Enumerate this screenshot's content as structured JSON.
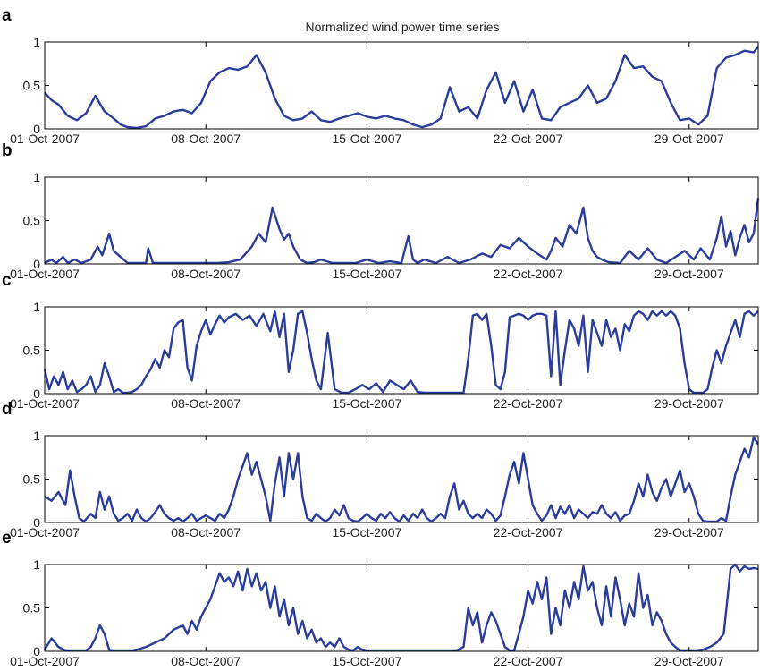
{
  "colors": {
    "series": "#2b3d9b",
    "axis": "#000000"
  },
  "chart_data": {
    "type": "line",
    "title": "Normalized wind power time series",
    "x_start": "01-Oct-2007",
    "x_end": "01-Nov-2007",
    "xticks": [
      "01-Oct-2007",
      "08-Oct-2007",
      "15-Oct-2007",
      "22-Oct-2007",
      "29-Oct-2007"
    ],
    "yticks": [
      "0",
      "0.5",
      "1"
    ],
    "ylim": [
      0,
      1
    ],
    "grid": false,
    "panels": [
      {
        "letter": "a",
        "t": [
          0,
          0.3,
          0.6,
          1,
          1.4,
          1.8,
          2.2,
          2.6,
          3,
          3.3,
          3.6,
          4,
          4.4,
          4.8,
          5.2,
          5.6,
          6,
          6.4,
          6.8,
          7.2,
          7.6,
          8,
          8.4,
          8.8,
          9.2,
          9.6,
          10,
          10.4,
          10.8,
          11.2,
          11.6,
          12,
          12.4,
          12.8,
          13.2,
          13.6,
          14,
          14.4,
          14.8,
          15.2,
          15.6,
          16,
          16.4,
          16.8,
          17.2,
          17.6,
          18,
          18.4,
          18.8,
          19.2,
          19.6,
          20,
          20.4,
          20.8,
          21.2,
          21.6,
          22,
          22.4,
          22.8,
          23.2,
          23.6,
          24,
          24.4,
          24.8,
          25.2,
          25.6,
          26,
          26.4,
          26.8,
          27.2,
          27.6,
          28,
          28.4,
          28.8,
          29.2,
          29.6,
          30,
          30.4,
          30.8,
          31
        ],
        "v": [
          0.42,
          0.33,
          0.28,
          0.15,
          0.1,
          0.18,
          0.38,
          0.2,
          0.12,
          0.05,
          0.02,
          0.01,
          0.03,
          0.12,
          0.15,
          0.2,
          0.22,
          0.18,
          0.3,
          0.55,
          0.65,
          0.7,
          0.68,
          0.72,
          0.85,
          0.65,
          0.35,
          0.15,
          0.1,
          0.12,
          0.2,
          0.1,
          0.08,
          0.12,
          0.15,
          0.18,
          0.14,
          0.12,
          0.15,
          0.12,
          0.1,
          0.05,
          0.02,
          0.05,
          0.12,
          0.48,
          0.2,
          0.25,
          0.12,
          0.45,
          0.65,
          0.3,
          0.55,
          0.2,
          0.45,
          0.12,
          0.1,
          0.25,
          0.3,
          0.35,
          0.5,
          0.3,
          0.35,
          0.55,
          0.85,
          0.7,
          0.72,
          0.6,
          0.55,
          0.3,
          0.1,
          0.12,
          0.05,
          0.15,
          0.7,
          0.82,
          0.85,
          0.9,
          0.88,
          0.95
        ]
      },
      {
        "letter": "b",
        "t": [
          0,
          0.3,
          0.5,
          0.8,
          1,
          1.3,
          1.6,
          2,
          2.3,
          2.5,
          2.8,
          3,
          3.3,
          3.6,
          4,
          4.4,
          4.5,
          4.7,
          5,
          5.5,
          6,
          6.5,
          7,
          7.5,
          8,
          8.5,
          9,
          9.3,
          9.6,
          9.9,
          10.2,
          10.4,
          10.6,
          10.8,
          11.1,
          11.4,
          11.7,
          12,
          12.5,
          13,
          13.5,
          14,
          14.5,
          15,
          15.5,
          15.8,
          16,
          16.2,
          16.5,
          17,
          17.5,
          18,
          18.5,
          19,
          19.4,
          19.8,
          20.2,
          20.6,
          21,
          21.4,
          21.8,
          22,
          22.2,
          22.5,
          22.8,
          23.1,
          23.4,
          23.6,
          23.8,
          24,
          24.2,
          24.5,
          25,
          25.4,
          25.8,
          26.2,
          26.6,
          27,
          27.4,
          27.8,
          28.2,
          28.5,
          28.9,
          29.2,
          29.4,
          29.6,
          29.8,
          30,
          30.2,
          30.4,
          30.6,
          30.8,
          31
        ],
        "v": [
          0.01,
          0.05,
          0.01,
          0.08,
          0.01,
          0.05,
          0.01,
          0.05,
          0.2,
          0.1,
          0.35,
          0.15,
          0.08,
          0.01,
          0.01,
          0.01,
          0.18,
          0.01,
          0.01,
          0.01,
          0.01,
          0.01,
          0.01,
          0.01,
          0.02,
          0.05,
          0.2,
          0.35,
          0.25,
          0.65,
          0.4,
          0.28,
          0.35,
          0.2,
          0.05,
          0.01,
          0.02,
          0.05,
          0.01,
          0.01,
          0.01,
          0.05,
          0.01,
          0.03,
          0.01,
          0.32,
          0.05,
          0.01,
          0.05,
          0.01,
          0.08,
          0.01,
          0.05,
          0.12,
          0.08,
          0.22,
          0.18,
          0.3,
          0.2,
          0.12,
          0.05,
          0.15,
          0.3,
          0.2,
          0.45,
          0.35,
          0.65,
          0.3,
          0.15,
          0.08,
          0.05,
          0.02,
          0.01,
          0.15,
          0.05,
          0.18,
          0.05,
          0.01,
          0.08,
          0.15,
          0.05,
          0.18,
          0.05,
          0.3,
          0.55,
          0.2,
          0.38,
          0.1,
          0.3,
          0.45,
          0.25,
          0.35,
          0.76
        ]
      },
      {
        "letter": "c",
        "t": [
          0,
          0.2,
          0.4,
          0.6,
          0.8,
          1,
          1.2,
          1.4,
          1.6,
          1.8,
          2,
          2.2,
          2.4,
          2.6,
          2.8,
          3,
          3.2,
          3.4,
          3.6,
          3.8,
          4,
          4.2,
          4.4,
          4.6,
          4.8,
          5,
          5.2,
          5.4,
          5.6,
          5.8,
          6,
          6.2,
          6.4,
          6.6,
          6.8,
          7,
          7.2,
          7.4,
          7.6,
          7.8,
          8,
          8.3,
          8.6,
          8.9,
          9.2,
          9.5,
          9.8,
          10,
          10.2,
          10.4,
          10.6,
          10.8,
          11,
          11.2,
          11.4,
          11.6,
          11.8,
          12,
          12.3,
          12.6,
          12.9,
          13.2,
          13.5,
          13.8,
          14.1,
          14.4,
          14.7,
          15,
          15.3,
          15.6,
          15.9,
          16.2,
          16.5,
          16.8,
          17.1,
          17.4,
          17.7,
          18,
          18.2,
          18.4,
          18.6,
          18.8,
          19,
          19.2,
          19.4,
          19.6,
          19.8,
          20,
          20.2,
          20.4,
          20.6,
          20.8,
          21,
          21.2,
          21.4,
          21.6,
          21.8,
          22,
          22.2,
          22.4,
          22.6,
          22.8,
          23,
          23.2,
          23.4,
          23.6,
          23.8,
          24,
          24.2,
          24.4,
          24.6,
          24.8,
          25,
          25.2,
          25.4,
          25.6,
          25.8,
          26,
          26.2,
          26.4,
          26.6,
          26.8,
          27,
          27.2,
          27.4,
          27.6,
          27.8,
          28,
          28.2,
          28.4,
          28.6,
          28.8,
          29,
          29.2,
          29.4,
          29.6,
          29.8,
          30,
          30.2,
          30.4,
          30.6,
          30.8,
          31
        ],
        "v": [
          0.28,
          0.05,
          0.2,
          0.1,
          0.25,
          0.05,
          0.15,
          0.02,
          0.05,
          0.1,
          0.2,
          0.02,
          0.1,
          0.35,
          0.2,
          0.02,
          0.05,
          0.01,
          0.01,
          0.02,
          0.05,
          0.1,
          0.2,
          0.28,
          0.4,
          0.3,
          0.5,
          0.42,
          0.75,
          0.82,
          0.85,
          0.3,
          0.15,
          0.55,
          0.72,
          0.85,
          0.68,
          0.8,
          0.9,
          0.82,
          0.88,
          0.92,
          0.85,
          0.9,
          0.78,
          0.92,
          0.72,
          0.95,
          0.65,
          0.92,
          0.25,
          0.5,
          0.92,
          0.95,
          0.7,
          0.4,
          0.15,
          0.05,
          0.7,
          0.05,
          0.01,
          0.01,
          0.05,
          0.1,
          0.05,
          0.12,
          0.02,
          0.15,
          0.1,
          0.05,
          0.15,
          0.02,
          0.01,
          0.01,
          0.01,
          0.01,
          0.01,
          0.01,
          0.01,
          0.4,
          0.9,
          0.92,
          0.85,
          0.92,
          0.55,
          0.1,
          0.05,
          0.25,
          0.88,
          0.9,
          0.92,
          0.9,
          0.85,
          0.9,
          0.92,
          0.92,
          0.9,
          0.2,
          0.95,
          0.1,
          0.5,
          0.85,
          0.75,
          0.55,
          0.9,
          0.25,
          0.85,
          0.7,
          0.55,
          0.85,
          0.65,
          0.75,
          0.5,
          0.8,
          0.72,
          0.9,
          0.95,
          0.92,
          0.85,
          0.95,
          0.9,
          0.95,
          0.9,
          0.95,
          0.9,
          0.75,
          0.35,
          0.05,
          0.01,
          0.01,
          0.01,
          0.05,
          0.3,
          0.5,
          0.35,
          0.55,
          0.7,
          0.85,
          0.65,
          0.92,
          0.95,
          0.9,
          0.95,
          0.9
        ]
      },
      {
        "letter": "d",
        "t": [
          0,
          0.3,
          0.6,
          0.9,
          1.1,
          1.3,
          1.5,
          1.7,
          2,
          2.2,
          2.4,
          2.6,
          2.8,
          3,
          3.2,
          3.4,
          3.6,
          3.8,
          4,
          4.2,
          4.4,
          4.6,
          4.8,
          5,
          5.2,
          5.4,
          5.6,
          5.8,
          6,
          6.2,
          6.4,
          6.6,
          6.8,
          7,
          7.2,
          7.4,
          7.6,
          7.8,
          8,
          8.2,
          8.4,
          8.6,
          8.8,
          9,
          9.2,
          9.4,
          9.6,
          9.8,
          10,
          10.2,
          10.4,
          10.6,
          10.8,
          11,
          11.2,
          11.4,
          11.6,
          11.8,
          12,
          12.2,
          12.4,
          12.6,
          12.8,
          13,
          13.2,
          13.4,
          13.6,
          13.8,
          14,
          14.2,
          14.4,
          14.6,
          14.8,
          15,
          15.2,
          15.4,
          15.6,
          15.8,
          16,
          16.2,
          16.4,
          16.6,
          16.8,
          17,
          17.2,
          17.4,
          17.6,
          17.8,
          18,
          18.2,
          18.4,
          18.6,
          18.8,
          19,
          19.2,
          19.4,
          19.6,
          19.8,
          20,
          20.2,
          20.4,
          20.6,
          20.8,
          21,
          21.2,
          21.4,
          21.6,
          21.8,
          22,
          22.2,
          22.4,
          22.6,
          22.8,
          23,
          23.2,
          23.4,
          23.6,
          23.8,
          24,
          24.2,
          24.4,
          24.6,
          24.8,
          25,
          25.2,
          25.4,
          25.6,
          25.8,
          26,
          26.2,
          26.4,
          26.6,
          26.8,
          27,
          27.2,
          27.4,
          27.6,
          27.8,
          28,
          28.2,
          28.4,
          28.6,
          28.8,
          29,
          29.2,
          29.4,
          29.6,
          29.8,
          30,
          30.2,
          30.4,
          30.6,
          30.8,
          31
        ],
        "v": [
          0.3,
          0.25,
          0.35,
          0.2,
          0.6,
          0.3,
          0.05,
          0.01,
          0.1,
          0.05,
          0.35,
          0.15,
          0.3,
          0.1,
          0.02,
          0.05,
          0.1,
          0.02,
          0.15,
          0.05,
          0.01,
          0.05,
          0.12,
          0.2,
          0.1,
          0.05,
          0.02,
          0.05,
          0.01,
          0.05,
          0.1,
          0.02,
          0.05,
          0.08,
          0.05,
          0.02,
          0.1,
          0.05,
          0.15,
          0.3,
          0.5,
          0.65,
          0.8,
          0.55,
          0.7,
          0.5,
          0.3,
          0.02,
          0.45,
          0.75,
          0.3,
          0.8,
          0.5,
          0.8,
          0.3,
          0.05,
          0.02,
          0.1,
          0.05,
          0.01,
          0.05,
          0.15,
          0.08,
          0.2,
          0.05,
          0.02,
          0.01,
          0.05,
          0.1,
          0.05,
          0.02,
          0.1,
          0.05,
          0.12,
          0.05,
          0.01,
          0.08,
          0.02,
          0.1,
          0.05,
          0.15,
          0.05,
          0.01,
          0.05,
          0.1,
          0.05,
          0.3,
          0.45,
          0.15,
          0.25,
          0.1,
          0.05,
          0.1,
          0.05,
          0.15,
          0.1,
          0.02,
          0.08,
          0.3,
          0.55,
          0.7,
          0.45,
          0.8,
          0.5,
          0.2,
          0.1,
          0.02,
          0.08,
          0.2,
          0.05,
          0.18,
          0.1,
          0.2,
          0.05,
          0.15,
          0.1,
          0.05,
          0.12,
          0.1,
          0.2,
          0.1,
          0.05,
          0.12,
          0.02,
          0.08,
          0.1,
          0.25,
          0.45,
          0.3,
          0.55,
          0.35,
          0.25,
          0.4,
          0.5,
          0.3,
          0.45,
          0.6,
          0.35,
          0.45,
          0.3,
          0.1,
          0.02,
          0.01,
          0.01,
          0.01,
          0.05,
          0.02,
          0.3,
          0.55,
          0.7,
          0.85,
          0.75,
          0.98,
          0.9,
          0.82,
          0.9,
          0.85,
          0.65
        ]
      },
      {
        "letter": "e",
        "t": [
          0,
          0.3,
          0.6,
          0.9,
          1.2,
          1.5,
          1.8,
          2,
          2.2,
          2.4,
          2.6,
          2.8,
          3,
          3.2,
          3.4,
          3.6,
          3.8,
          4,
          4.4,
          4.8,
          5.2,
          5.6,
          6,
          6.2,
          6.4,
          6.6,
          6.8,
          7,
          7.2,
          7.4,
          7.6,
          7.8,
          8,
          8.2,
          8.4,
          8.6,
          8.8,
          9,
          9.2,
          9.4,
          9.6,
          9.8,
          10,
          10.2,
          10.4,
          10.6,
          10.8,
          11,
          11.2,
          11.4,
          11.6,
          11.8,
          12,
          12.2,
          12.4,
          12.6,
          12.8,
          13,
          13.2,
          13.4,
          13.6,
          13.8,
          14,
          14.3,
          14.6,
          15,
          15.4,
          15.8,
          16.2,
          16.6,
          17,
          17.3,
          17.6,
          17.9,
          18.2,
          18.4,
          18.6,
          18.8,
          19,
          19.2,
          19.4,
          19.6,
          19.8,
          20,
          20.2,
          20.4,
          20.6,
          20.8,
          21,
          21.2,
          21.4,
          21.6,
          21.8,
          22,
          22.2,
          22.4,
          22.6,
          22.8,
          23,
          23.2,
          23.4,
          23.6,
          23.8,
          24,
          24.2,
          24.4,
          24.6,
          24.8,
          25,
          25.2,
          25.4,
          25.6,
          25.8,
          26,
          26.2,
          26.4,
          26.6,
          26.8,
          27,
          27.2,
          27.4,
          27.6,
          27.8,
          28,
          28.3,
          28.6,
          28.9,
          29.2,
          29.5,
          29.8,
          30,
          30.2,
          30.4,
          30.6,
          30.8,
          31
        ],
        "v": [
          0.02,
          0.15,
          0.05,
          0.01,
          0.01,
          0.01,
          0.01,
          0.05,
          0.15,
          0.3,
          0.2,
          0.02,
          0.01,
          0.01,
          0.01,
          0.01,
          0.01,
          0.02,
          0.05,
          0.1,
          0.15,
          0.25,
          0.3,
          0.2,
          0.35,
          0.25,
          0.4,
          0.5,
          0.6,
          0.75,
          0.9,
          0.8,
          0.85,
          0.75,
          0.92,
          0.7,
          0.95,
          0.75,
          0.9,
          0.7,
          0.8,
          0.5,
          0.75,
          0.4,
          0.6,
          0.3,
          0.5,
          0.2,
          0.35,
          0.15,
          0.25,
          0.1,
          0.15,
          0.05,
          0.1,
          0.05,
          0.15,
          0.05,
          0.02,
          0.01,
          0.05,
          0.02,
          0.01,
          0.01,
          0.01,
          0.01,
          0.01,
          0.01,
          0.01,
          0.01,
          0.01,
          0.01,
          0.01,
          0.01,
          0.05,
          0.5,
          0.3,
          0.45,
          0.1,
          0.3,
          0.45,
          0.35,
          0.2,
          0.05,
          0.01,
          0.01,
          0.2,
          0.4,
          0.7,
          0.55,
          0.8,
          0.6,
          0.85,
          0.2,
          0.5,
          0.3,
          0.7,
          0.5,
          0.8,
          0.6,
          0.98,
          0.7,
          0.8,
          0.5,
          0.3,
          0.75,
          0.4,
          0.85,
          0.6,
          0.3,
          0.55,
          0.4,
          0.9,
          0.5,
          0.65,
          0.3,
          0.45,
          0.35,
          0.2,
          0.1,
          0.05,
          0.01,
          0.01,
          0.01,
          0.01,
          0.02,
          0.05,
          0.1,
          0.2,
          0.95,
          1.0,
          0.92,
          0.98,
          0.95,
          0.96,
          0.95
        ]
      }
    ]
  }
}
